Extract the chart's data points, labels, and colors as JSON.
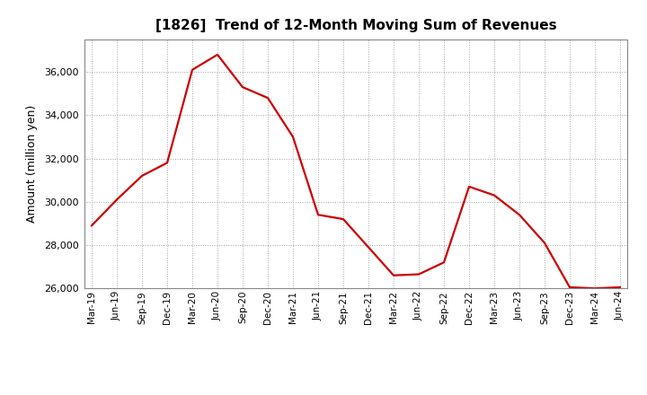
{
  "title": "[1826]  Trend of 12-Month Moving Sum of Revenues",
  "ylabel": "Amount (million yen)",
  "line_color": "#cc0000",
  "background_color": "#ffffff",
  "grid_color": "#999999",
  "ylim": [
    26000,
    37500
  ],
  "yticks": [
    26000,
    28000,
    30000,
    32000,
    34000,
    36000
  ],
  "x_labels": [
    "Mar-19",
    "Jun-19",
    "Sep-19",
    "Dec-19",
    "Mar-20",
    "Jun-20",
    "Sep-20",
    "Dec-20",
    "Mar-21",
    "Jun-21",
    "Sep-21",
    "Dec-21",
    "Mar-22",
    "Jun-22",
    "Sep-22",
    "Dec-22",
    "Mar-23",
    "Jun-23",
    "Sep-23",
    "Dec-23",
    "Mar-24",
    "Jun-24"
  ],
  "values": [
    28900,
    30100,
    31200,
    31800,
    36100,
    36800,
    35300,
    34800,
    33000,
    29400,
    29200,
    27900,
    26600,
    26650,
    27200,
    30700,
    30300,
    29400,
    28100,
    26050,
    26000,
    26050
  ]
}
